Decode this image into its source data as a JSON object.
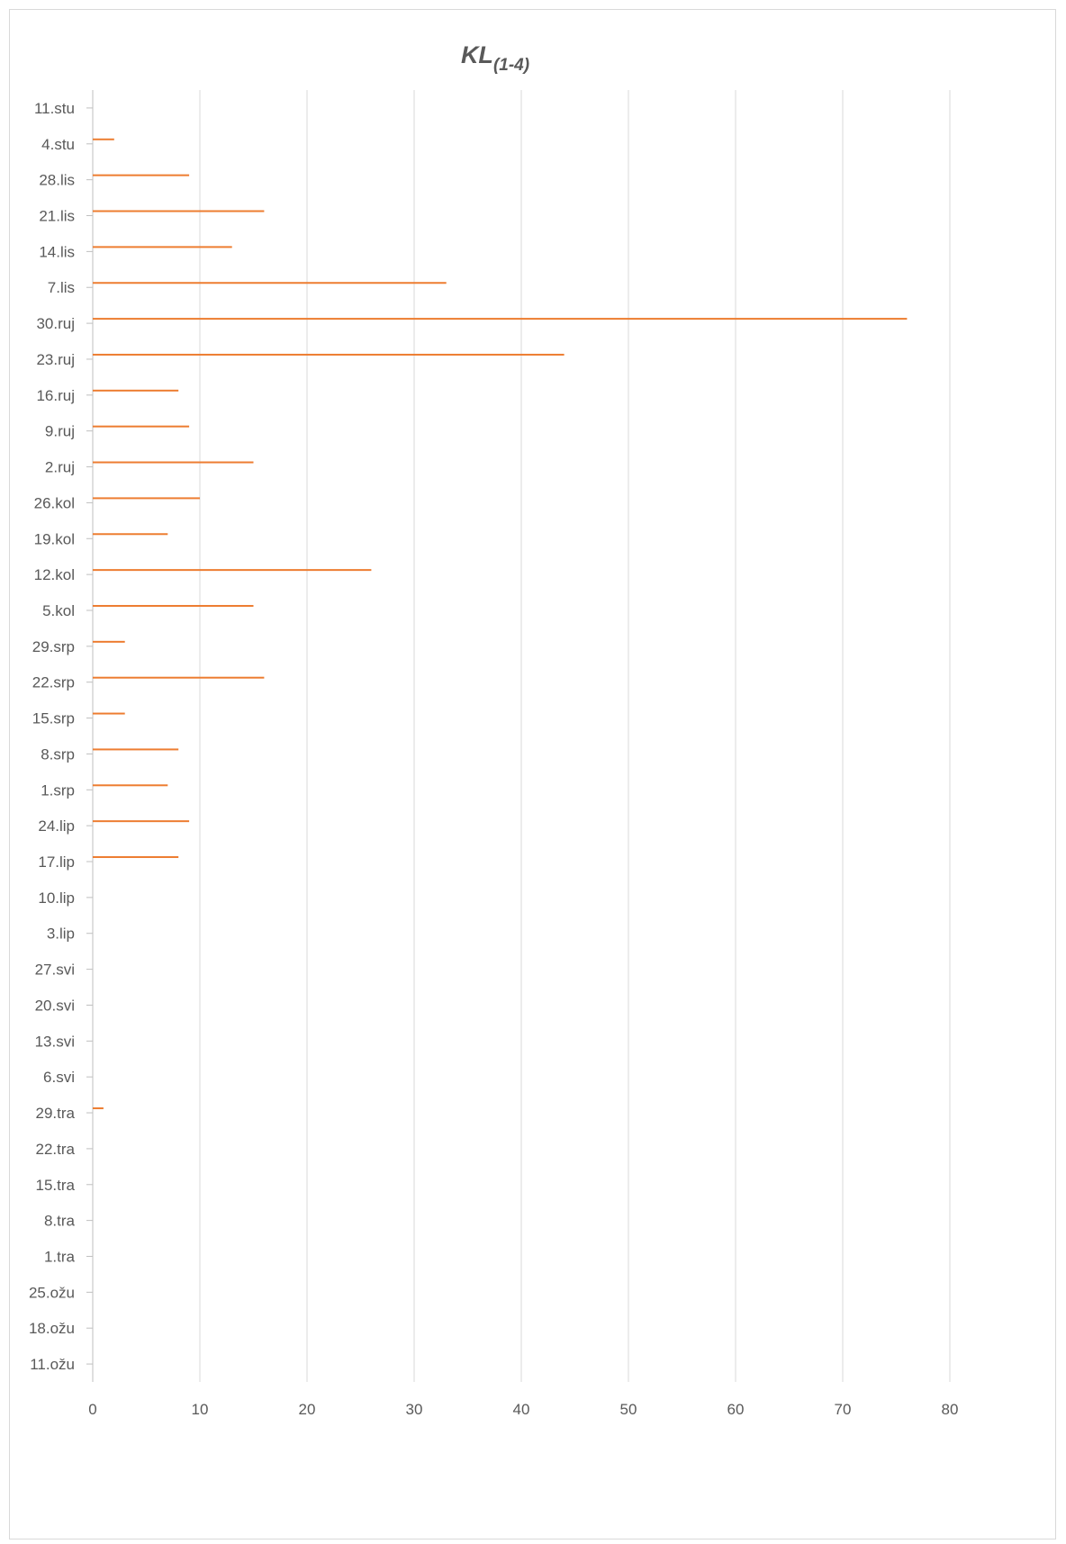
{
  "chart_data": {
    "type": "bar",
    "orientation": "horizontal",
    "title": "KL",
    "title_subscript": "(1-4)",
    "xlabel": "",
    "ylabel": "",
    "xlim": [
      0,
      80
    ],
    "x_ticks": [
      0,
      10,
      20,
      30,
      40,
      50,
      60,
      70,
      80
    ],
    "grid": "vertical",
    "legend": "none",
    "bar_color": "#ED7D31",
    "categories": [
      "11.ožu",
      "18.ožu",
      "25.ožu",
      "1.tra",
      "8.tra",
      "15.tra",
      "22.tra",
      "29.tra",
      "6.svi",
      "13.svi",
      "20.svi",
      "27.svi",
      "3.lip",
      "10.lip",
      "17.lip",
      "24.lip",
      "1.srp",
      "8.srp",
      "15.srp",
      "22.srp",
      "29.srp",
      "5.kol",
      "12.kol",
      "19.kol",
      "26.kol",
      "2.ruj",
      "9.ruj",
      "16.ruj",
      "23.ruj",
      "30.ruj",
      "7.lis",
      "14.lis",
      "21.lis",
      "28.lis",
      "4.stu",
      "11.stu"
    ],
    "values": [
      0,
      0,
      0,
      0,
      0,
      0,
      0,
      1,
      0,
      0,
      0,
      0,
      0,
      0,
      8,
      9,
      7,
      8,
      3,
      16,
      3,
      15,
      26,
      7,
      10,
      15,
      9,
      8,
      44,
      76,
      33,
      13,
      16,
      9,
      2,
      0
    ]
  }
}
